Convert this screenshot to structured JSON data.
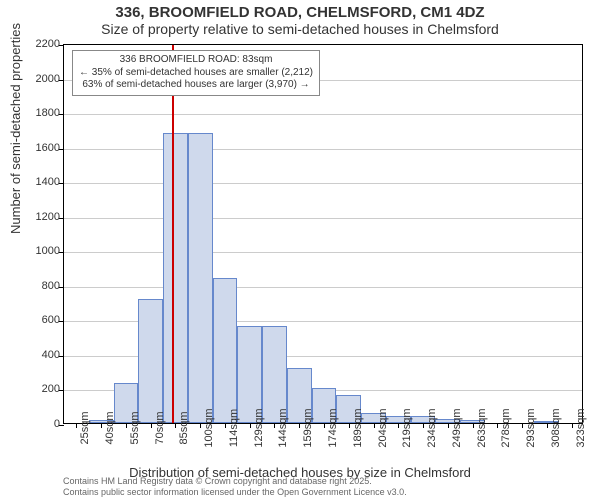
{
  "title_line1": "336, BROOMFIELD ROAD, CHELMSFORD, CM1 4DZ",
  "title_line2": "Size of property relative to semi-detached houses in Chelmsford",
  "y_axis_label": "Number of semi-detached properties",
  "x_axis_label": "Distribution of semi-detached houses by size in Chelmsford",
  "footer_line1": "Contains HM Land Registry data © Crown copyright and database right 2025.",
  "footer_line2": "Contains public sector information licensed under the Open Government Licence v3.0.",
  "annotation": {
    "line1": "336 BROOMFIELD ROAD: 83sqm",
    "line2": "← 35% of semi-detached houses are smaller (2,212)",
    "line3": "63% of semi-detached houses are larger (3,970) →"
  },
  "chart": {
    "type": "histogram",
    "ylim": [
      0,
      2200
    ],
    "ytick_step": 200,
    "y_ticks": [
      0,
      200,
      400,
      600,
      800,
      1000,
      1200,
      1400,
      1600,
      1800,
      2000,
      2200
    ],
    "x_categories": [
      "25sqm",
      "40sqm",
      "55sqm",
      "70sqm",
      "85sqm",
      "100sqm",
      "114sqm",
      "129sqm",
      "144sqm",
      "159sqm",
      "174sqm",
      "189sqm",
      "204sqm",
      "219sqm",
      "234sqm",
      "249sqm",
      "263sqm",
      "278sqm",
      "293sqm",
      "308sqm",
      "323sqm"
    ],
    "values": [
      0,
      20,
      230,
      720,
      1680,
      1680,
      840,
      560,
      560,
      320,
      200,
      160,
      60,
      40,
      40,
      25,
      15,
      0,
      0,
      5,
      0
    ],
    "bar_fill": "#cfd9ec",
    "bar_stroke": "#6688cc",
    "grid_color": "#cccccc",
    "background_color": "#ffffff",
    "marker_color": "#cc0000",
    "marker_position": 83,
    "x_bin_start": 17.5,
    "x_bin_width": 15,
    "title_fontsize": 15,
    "subtitle_fontsize": 14,
    "axis_label_fontsize": 13,
    "tick_fontsize": 11,
    "annotation_fontsize": 10
  }
}
